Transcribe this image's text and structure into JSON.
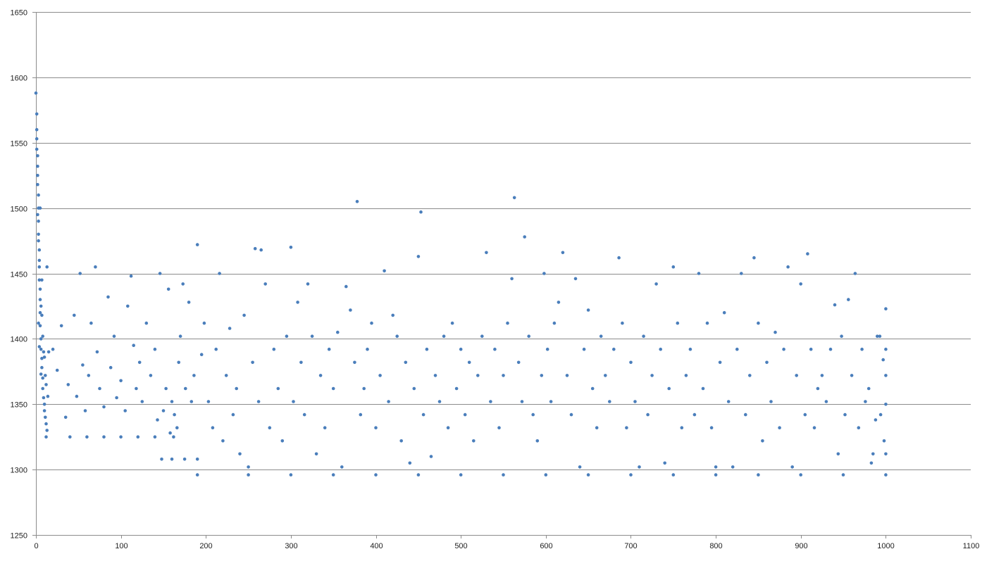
{
  "chart_data": {
    "type": "scatter",
    "title": "",
    "xlabel": "",
    "ylabel": "",
    "xlim": [
      0,
      1100
    ],
    "ylim": [
      1250,
      1650
    ],
    "x_ticks": [
      0,
      100,
      200,
      300,
      400,
      500,
      600,
      700,
      800,
      900,
      1000,
      1100
    ],
    "y_ticks": [
      1250,
      1300,
      1350,
      1400,
      1450,
      1500,
      1550,
      1600,
      1650
    ],
    "x_tick_labels": [
      "0",
      "100",
      "200",
      "300",
      "400",
      "500",
      "600",
      "700",
      "800",
      "900",
      "1000",
      "1100"
    ],
    "y_tick_labels": [
      "1250",
      "1300",
      "1350",
      "1400",
      "1450",
      "1500",
      "1550",
      "1600",
      "1650"
    ],
    "grid": "horizontal",
    "legend": "none",
    "colors": {
      "marker": "#4a7ebb",
      "grid": "#8c8c8c"
    },
    "series": [
      {
        "color": "#4a7ebb",
        "points": [
          [
            0,
            1588
          ],
          [
            1,
            1572
          ],
          [
            1,
            1560
          ],
          [
            1,
            1553
          ],
          [
            2,
            1540
          ],
          [
            2,
            1532
          ],
          [
            2,
            1525
          ],
          [
            2,
            1518
          ],
          [
            3,
            1510
          ],
          [
            3,
            1500
          ],
          [
            3,
            1490
          ],
          [
            3,
            1475
          ],
          [
            4,
            1468
          ],
          [
            4,
            1455
          ],
          [
            4,
            1445
          ],
          [
            5,
            1430
          ],
          [
            5,
            1420
          ],
          [
            5,
            1410
          ],
          [
            6,
            1400
          ],
          [
            6,
            1392
          ],
          [
            7,
            1385
          ],
          [
            7,
            1378
          ],
          [
            8,
            1370
          ],
          [
            8,
            1362
          ],
          [
            9,
            1355
          ],
          [
            10,
            1350
          ],
          [
            10,
            1345
          ],
          [
            11,
            1340
          ],
          [
            12,
            1335
          ],
          [
            13,
            1330
          ],
          [
            3,
            1480
          ],
          [
            2,
            1495
          ],
          [
            4,
            1460
          ],
          [
            1,
            1545
          ],
          [
            5,
            1438
          ],
          [
            6,
            1425
          ],
          [
            7,
            1418
          ],
          [
            8,
            1402
          ],
          [
            9,
            1390
          ],
          [
            11,
            1372
          ],
          [
            12,
            1365
          ],
          [
            14,
            1356
          ],
          [
            10,
            1386
          ],
          [
            6,
            1373
          ],
          [
            4,
            1394
          ],
          [
            3,
            1412
          ],
          [
            13,
            1455
          ],
          [
            15,
            1390
          ],
          [
            5,
            1500
          ],
          [
            7,
            1445
          ],
          [
            12,
            1325
          ],
          [
            40,
            1325
          ],
          [
            60,
            1325
          ],
          [
            80,
            1325
          ],
          [
            100,
            1325
          ],
          [
            120,
            1325
          ],
          [
            140,
            1325
          ],
          [
            162,
            1325
          ],
          [
            148,
            1308
          ],
          [
            160,
            1308
          ],
          [
            175,
            1308
          ],
          [
            190,
            1308
          ],
          [
            190,
            1296
          ],
          [
            250,
            1296
          ],
          [
            300,
            1296
          ],
          [
            350,
            1296
          ],
          [
            400,
            1296
          ],
          [
            450,
            1296
          ],
          [
            500,
            1296
          ],
          [
            550,
            1296
          ],
          [
            600,
            1296
          ],
          [
            650,
            1296
          ],
          [
            700,
            1296
          ],
          [
            750,
            1296
          ],
          [
            800,
            1296
          ],
          [
            850,
            1296
          ],
          [
            900,
            1296
          ],
          [
            950,
            1296
          ],
          [
            1000,
            1296
          ],
          [
            20,
            1392
          ],
          [
            25,
            1376
          ],
          [
            30,
            1410
          ],
          [
            35,
            1340
          ],
          [
            38,
            1365
          ],
          [
            45,
            1418
          ],
          [
            48,
            1356
          ],
          [
            52,
            1450
          ],
          [
            55,
            1380
          ],
          [
            58,
            1345
          ],
          [
            62,
            1372
          ],
          [
            65,
            1412
          ],
          [
            70,
            1455
          ],
          [
            72,
            1390
          ],
          [
            75,
            1362
          ],
          [
            80,
            1348
          ],
          [
            85,
            1432
          ],
          [
            88,
            1378
          ],
          [
            92,
            1402
          ],
          [
            95,
            1355
          ],
          [
            100,
            1368
          ],
          [
            105,
            1345
          ],
          [
            108,
            1425
          ],
          [
            112,
            1448
          ],
          [
            115,
            1395
          ],
          [
            118,
            1362
          ],
          [
            122,
            1382
          ],
          [
            125,
            1352
          ],
          [
            130,
            1412
          ],
          [
            135,
            1372
          ],
          [
            140,
            1392
          ],
          [
            143,
            1338
          ],
          [
            146,
            1450
          ],
          [
            150,
            1345
          ],
          [
            153,
            1362
          ],
          [
            156,
            1438
          ],
          [
            158,
            1328
          ],
          [
            160,
            1352
          ],
          [
            163,
            1342
          ],
          [
            166,
            1332
          ],
          [
            168,
            1382
          ],
          [
            170,
            1402
          ],
          [
            173,
            1442
          ],
          [
            176,
            1362
          ],
          [
            180,
            1428
          ],
          [
            183,
            1352
          ],
          [
            186,
            1372
          ],
          [
            190,
            1472
          ],
          [
            195,
            1388
          ],
          [
            198,
            1412
          ],
          [
            203,
            1352
          ],
          [
            208,
            1332
          ],
          [
            212,
            1392
          ],
          [
            216,
            1450
          ],
          [
            220,
            1322
          ],
          [
            224,
            1372
          ],
          [
            228,
            1408
          ],
          [
            232,
            1342
          ],
          [
            236,
            1362
          ],
          [
            240,
            1312
          ],
          [
            245,
            1418
          ],
          [
            250,
            1302
          ],
          [
            255,
            1382
          ],
          [
            258,
            1469
          ],
          [
            262,
            1352
          ],
          [
            265,
            1468
          ],
          [
            270,
            1442
          ],
          [
            275,
            1332
          ],
          [
            280,
            1392
          ],
          [
            285,
            1362
          ],
          [
            290,
            1322
          ],
          [
            295,
            1402
          ],
          [
            300,
            1470
          ],
          [
            303,
            1352
          ],
          [
            308,
            1428
          ],
          [
            312,
            1382
          ],
          [
            316,
            1342
          ],
          [
            320,
            1442
          ],
          [
            325,
            1402
          ],
          [
            330,
            1312
          ],
          [
            335,
            1372
          ],
          [
            340,
            1332
          ],
          [
            345,
            1392
          ],
          [
            350,
            1362
          ],
          [
            355,
            1405
          ],
          [
            360,
            1302
          ],
          [
            365,
            1440
          ],
          [
            370,
            1422
          ],
          [
            375,
            1382
          ],
          [
            378,
            1505
          ],
          [
            382,
            1342
          ],
          [
            386,
            1362
          ],
          [
            390,
            1392
          ],
          [
            395,
            1412
          ],
          [
            400,
            1332
          ],
          [
            405,
            1372
          ],
          [
            410,
            1452
          ],
          [
            415,
            1352
          ],
          [
            420,
            1418
          ],
          [
            425,
            1402
          ],
          [
            430,
            1322
          ],
          [
            435,
            1382
          ],
          [
            440,
            1305
          ],
          [
            445,
            1362
          ],
          [
            450,
            1463
          ],
          [
            453,
            1497
          ],
          [
            456,
            1342
          ],
          [
            460,
            1392
          ],
          [
            465,
            1310
          ],
          [
            470,
            1372
          ],
          [
            475,
            1352
          ],
          [
            480,
            1402
          ],
          [
            485,
            1332
          ],
          [
            490,
            1412
          ],
          [
            495,
            1362
          ],
          [
            500,
            1392
          ],
          [
            505,
            1342
          ],
          [
            510,
            1382
          ],
          [
            515,
            1322
          ],
          [
            520,
            1372
          ],
          [
            525,
            1402
          ],
          [
            530,
            1466
          ],
          [
            535,
            1352
          ],
          [
            540,
            1392
          ],
          [
            545,
            1332
          ],
          [
            550,
            1372
          ],
          [
            555,
            1412
          ],
          [
            560,
            1446
          ],
          [
            563,
            1508
          ],
          [
            568,
            1382
          ],
          [
            572,
            1352
          ],
          [
            575,
            1478
          ],
          [
            580,
            1402
          ],
          [
            585,
            1342
          ],
          [
            590,
            1322
          ],
          [
            595,
            1372
          ],
          [
            598,
            1450
          ],
          [
            602,
            1392
          ],
          [
            606,
            1352
          ],
          [
            610,
            1412
          ],
          [
            615,
            1428
          ],
          [
            620,
            1466
          ],
          [
            625,
            1372
          ],
          [
            630,
            1342
          ],
          [
            635,
            1446
          ],
          [
            640,
            1302
          ],
          [
            645,
            1392
          ],
          [
            650,
            1422
          ],
          [
            655,
            1362
          ],
          [
            660,
            1332
          ],
          [
            665,
            1402
          ],
          [
            670,
            1372
          ],
          [
            675,
            1352
          ],
          [
            680,
            1392
          ],
          [
            686,
            1462
          ],
          [
            690,
            1412
          ],
          [
            695,
            1332
          ],
          [
            700,
            1382
          ],
          [
            705,
            1352
          ],
          [
            710,
            1302
          ],
          [
            715,
            1402
          ],
          [
            720,
            1342
          ],
          [
            725,
            1372
          ],
          [
            730,
            1442
          ],
          [
            735,
            1392
          ],
          [
            740,
            1305
          ],
          [
            745,
            1362
          ],
          [
            750,
            1455
          ],
          [
            755,
            1412
          ],
          [
            760,
            1332
          ],
          [
            765,
            1372
          ],
          [
            770,
            1392
          ],
          [
            775,
            1342
          ],
          [
            780,
            1450
          ],
          [
            785,
            1362
          ],
          [
            790,
            1412
          ],
          [
            795,
            1332
          ],
          [
            800,
            1302
          ],
          [
            805,
            1382
          ],
          [
            810,
            1420
          ],
          [
            815,
            1352
          ],
          [
            820,
            1302
          ],
          [
            825,
            1392
          ],
          [
            830,
            1450
          ],
          [
            835,
            1342
          ],
          [
            840,
            1372
          ],
          [
            845,
            1462
          ],
          [
            850,
            1412
          ],
          [
            855,
            1322
          ],
          [
            860,
            1382
          ],
          [
            865,
            1352
          ],
          [
            870,
            1405
          ],
          [
            875,
            1332
          ],
          [
            880,
            1392
          ],
          [
            885,
            1455
          ],
          [
            890,
            1302
          ],
          [
            895,
            1372
          ],
          [
            900,
            1442
          ],
          [
            905,
            1342
          ],
          [
            908,
            1465
          ],
          [
            912,
            1392
          ],
          [
            916,
            1332
          ],
          [
            920,
            1362
          ],
          [
            925,
            1372
          ],
          [
            930,
            1352
          ],
          [
            935,
            1392
          ],
          [
            940,
            1426
          ],
          [
            944,
            1312
          ],
          [
            948,
            1402
          ],
          [
            952,
            1342
          ],
          [
            956,
            1430
          ],
          [
            960,
            1372
          ],
          [
            964,
            1450
          ],
          [
            968,
            1332
          ],
          [
            972,
            1392
          ],
          [
            976,
            1352
          ],
          [
            980,
            1362
          ],
          [
            985,
            1312
          ],
          [
            990,
            1402
          ],
          [
            994,
            1342
          ],
          [
            998,
            1322
          ],
          [
            1000,
            1423
          ],
          [
            1000,
            1392
          ],
          [
            1000,
            1372
          ],
          [
            1000,
            1350
          ],
          [
            1000,
            1312
          ],
          [
            997,
            1384
          ],
          [
            993,
            1402
          ],
          [
            988,
            1338
          ],
          [
            983,
            1305
          ]
        ]
      }
    ]
  }
}
